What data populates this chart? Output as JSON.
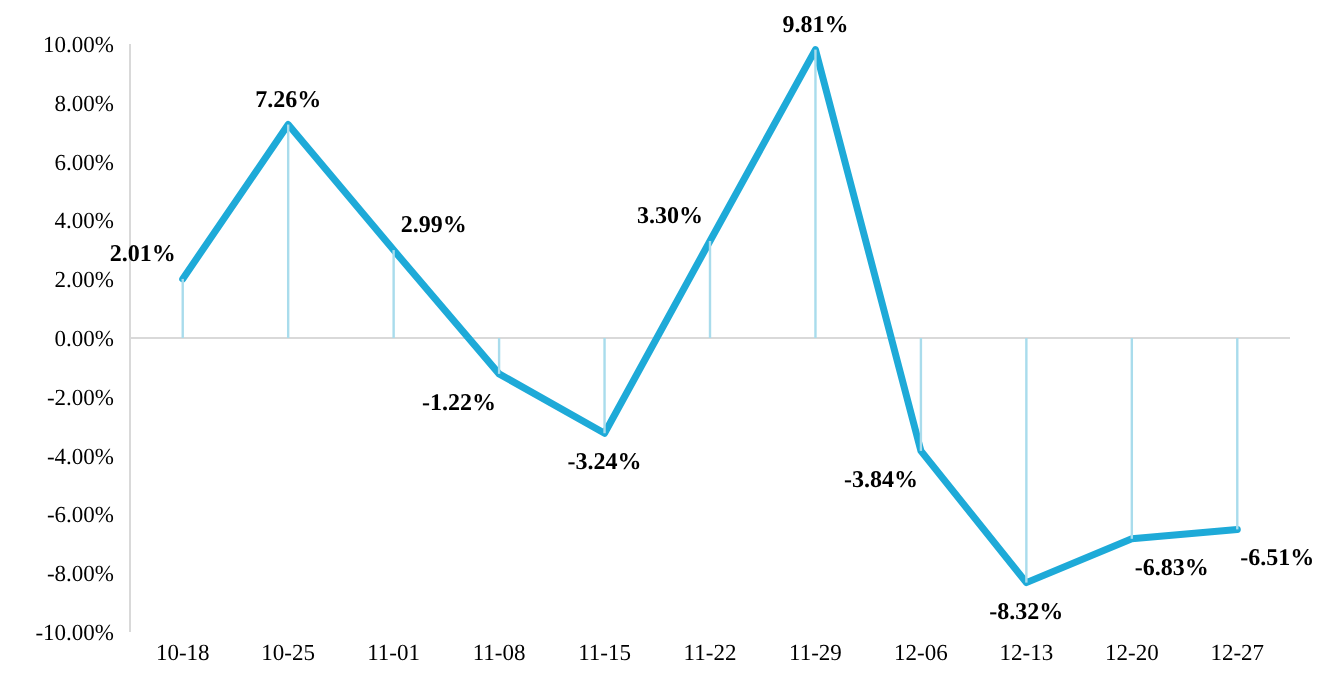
{
  "chart_data": {
    "type": "line",
    "categories": [
      "10-18",
      "10-25",
      "11-01",
      "11-08",
      "11-15",
      "11-22",
      "11-29",
      "12-06",
      "12-13",
      "12-20",
      "12-27"
    ],
    "series": [
      {
        "type": "bar",
        "color": "#a9dcec",
        "values": [
          2.01,
          7.26,
          2.99,
          -1.22,
          -3.24,
          3.3,
          9.81,
          -3.84,
          -8.32,
          -6.83,
          -6.51
        ]
      },
      {
        "color": "#1eaad8",
        "values": [
          2.01,
          7.26,
          2.99,
          -1.22,
          -3.24,
          3.3,
          9.81,
          -3.84,
          -8.32,
          -6.83,
          -6.51
        ],
        "value_labels": [
          "2.01%",
          "7.26%",
          "2.99%",
          "-1.22%",
          "-3.24%",
          "3.30%",
          "9.81%",
          "-3.84%",
          "-8.32%",
          "-6.83%",
          "-6.51%"
        ]
      }
    ],
    "ylim": [
      -10,
      10
    ],
    "yticks": [
      {
        "value": -10,
        "label": "-10.00%"
      },
      {
        "value": -8,
        "label": "-8.00%"
      },
      {
        "value": -6,
        "label": "-6.00%"
      },
      {
        "value": -4,
        "label": "-4.00%"
      },
      {
        "value": -2,
        "label": "-2.00%"
      },
      {
        "value": 0,
        "label": "0.00%"
      },
      {
        "value": 2,
        "label": "2.00%"
      },
      {
        "value": 4,
        "label": "4.00%"
      },
      {
        "value": 6,
        "label": "6.00%"
      },
      {
        "value": 8,
        "label": "8.00%"
      },
      {
        "value": 10,
        "label": "10.00%"
      }
    ],
    "marker": "none"
  }
}
